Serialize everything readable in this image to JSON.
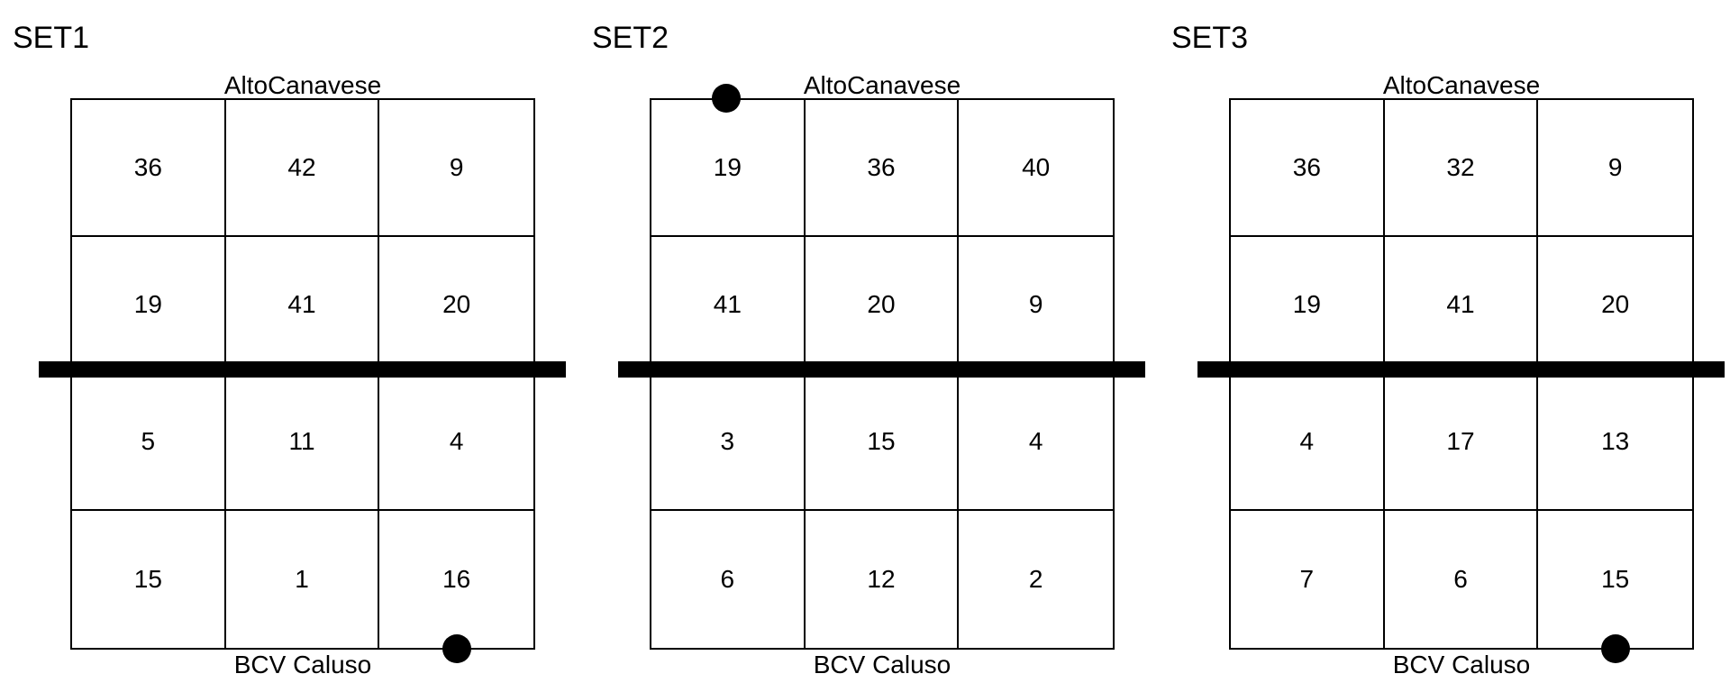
{
  "sets": [
    {
      "title": "SET1",
      "top_team": "AltoCanavese",
      "bottom_team": "BCV Caluso",
      "rows": [
        [
          "36",
          "42",
          "9"
        ],
        [
          "19",
          "41",
          "20"
        ],
        [
          "5",
          "11",
          "4"
        ],
        [
          "15",
          "1",
          "16"
        ]
      ],
      "serve_marker": "bottom-right"
    },
    {
      "title": "SET2",
      "top_team": "AltoCanavese",
      "bottom_team": "BCV Caluso",
      "rows": [
        [
          "19",
          "36",
          "40"
        ],
        [
          "41",
          "20",
          "9"
        ],
        [
          "3",
          "15",
          "4"
        ],
        [
          "6",
          "12",
          "2"
        ]
      ],
      "serve_marker": "top-left"
    },
    {
      "title": "SET3",
      "top_team": "AltoCanavese",
      "bottom_team": "BCV Caluso",
      "rows": [
        [
          "36",
          "32",
          "9"
        ],
        [
          "19",
          "41",
          "20"
        ],
        [
          "4",
          "17",
          "13"
        ],
        [
          "7",
          "6",
          "15"
        ]
      ],
      "serve_marker": "bottom-right"
    }
  ]
}
